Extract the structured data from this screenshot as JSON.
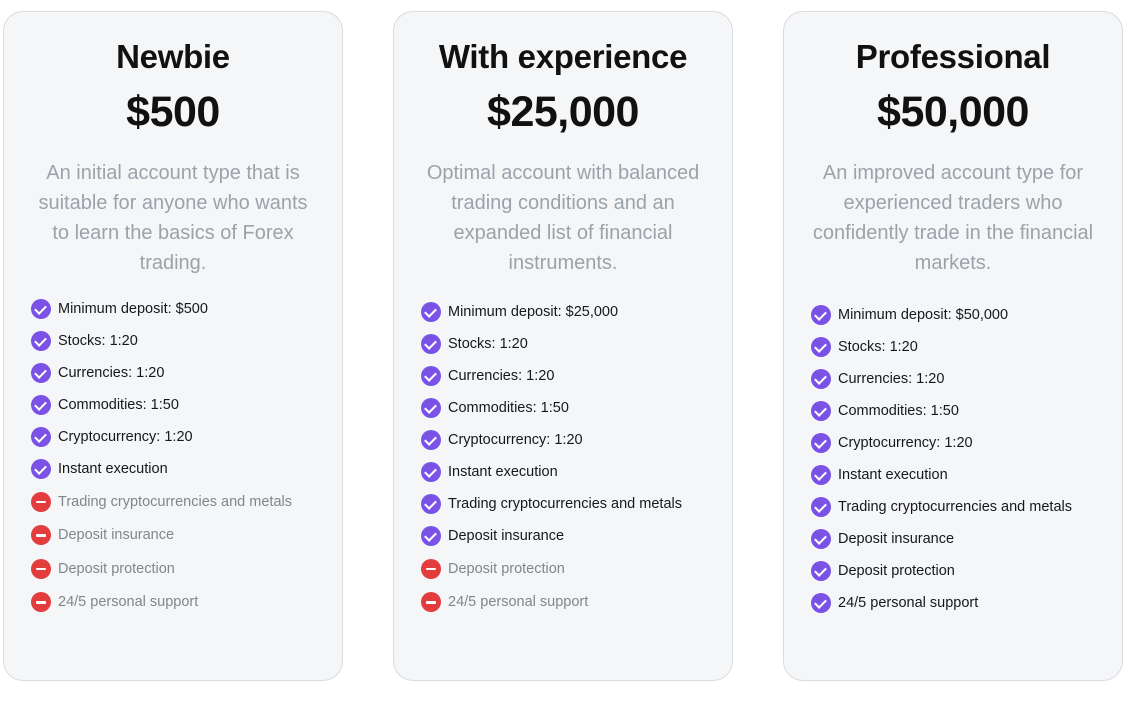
{
  "plans": [
    {
      "title": "Newbie",
      "price": "$500",
      "description": "An initial account type that is suitable for anyone who wants to learn the basics of Forex trading.",
      "features": [
        {
          "label": "Minimum deposit:  $500",
          "included": true
        },
        {
          "label": "Stocks:  1:20",
          "included": true
        },
        {
          "label": "Currencies:  1:20",
          "included": true
        },
        {
          "label": "Commodities:  1:50",
          "included": true
        },
        {
          "label": "Cryptocurrency:  1:20",
          "included": true
        },
        {
          "label": "Instant execution",
          "included": true
        },
        {
          "label": "Trading cryptocurrencies and metals",
          "included": false
        },
        {
          "label": "Deposit insurance",
          "included": false
        },
        {
          "label": "Deposit protection",
          "included": false
        },
        {
          "label": "24/5 personal support",
          "included": false
        }
      ]
    },
    {
      "title": "With experience",
      "price": "$25,000",
      "description": "Optimal account with balanced trading conditions and an expanded list of financial instruments.",
      "features": [
        {
          "label": "Minimum deposit:  $25,000",
          "included": true
        },
        {
          "label": "Stocks:  1:20",
          "included": true
        },
        {
          "label": "Currencies:  1:20",
          "included": true
        },
        {
          "label": "Commodities:  1:50",
          "included": true
        },
        {
          "label": "Cryptocurrency:  1:20",
          "included": true
        },
        {
          "label": "Instant execution",
          "included": true
        },
        {
          "label": "Trading cryptocurrencies and metals",
          "included": true
        },
        {
          "label": "Deposit insurance",
          "included": true
        },
        {
          "label": "Deposit protection",
          "included": false
        },
        {
          "label": "24/5 personal support",
          "included": false
        }
      ]
    },
    {
      "title": "Professional",
      "price": "$50,000",
      "description": "An improved account type for experienced traders who confidently trade in the financial markets.",
      "features": [
        {
          "label": "Minimum deposit: $50,000",
          "included": true
        },
        {
          "label": "Stocks:  1:20",
          "included": true
        },
        {
          "label": "Currencies:  1:20",
          "included": true
        },
        {
          "label": "Commodities:  1:50",
          "included": true
        },
        {
          "label": "Cryptocurrency:  1:20",
          "included": true
        },
        {
          "label": "Instant execution",
          "included": true
        },
        {
          "label": "Trading cryptocurrencies and metals",
          "included": true
        },
        {
          "label": "Deposit insurance",
          "included": true
        },
        {
          "label": "Deposit protection",
          "included": true
        },
        {
          "label": "24/5 personal support",
          "included": true
        }
      ]
    }
  ],
  "icons": {
    "included": "check-circle-icon",
    "excluded": "minus-circle-icon"
  },
  "colors": {
    "included_icon": "#7b52e6",
    "excluded_icon": "#e23c3c",
    "description_text": "#9aa3aa",
    "card_background": "#f5f6f8"
  }
}
